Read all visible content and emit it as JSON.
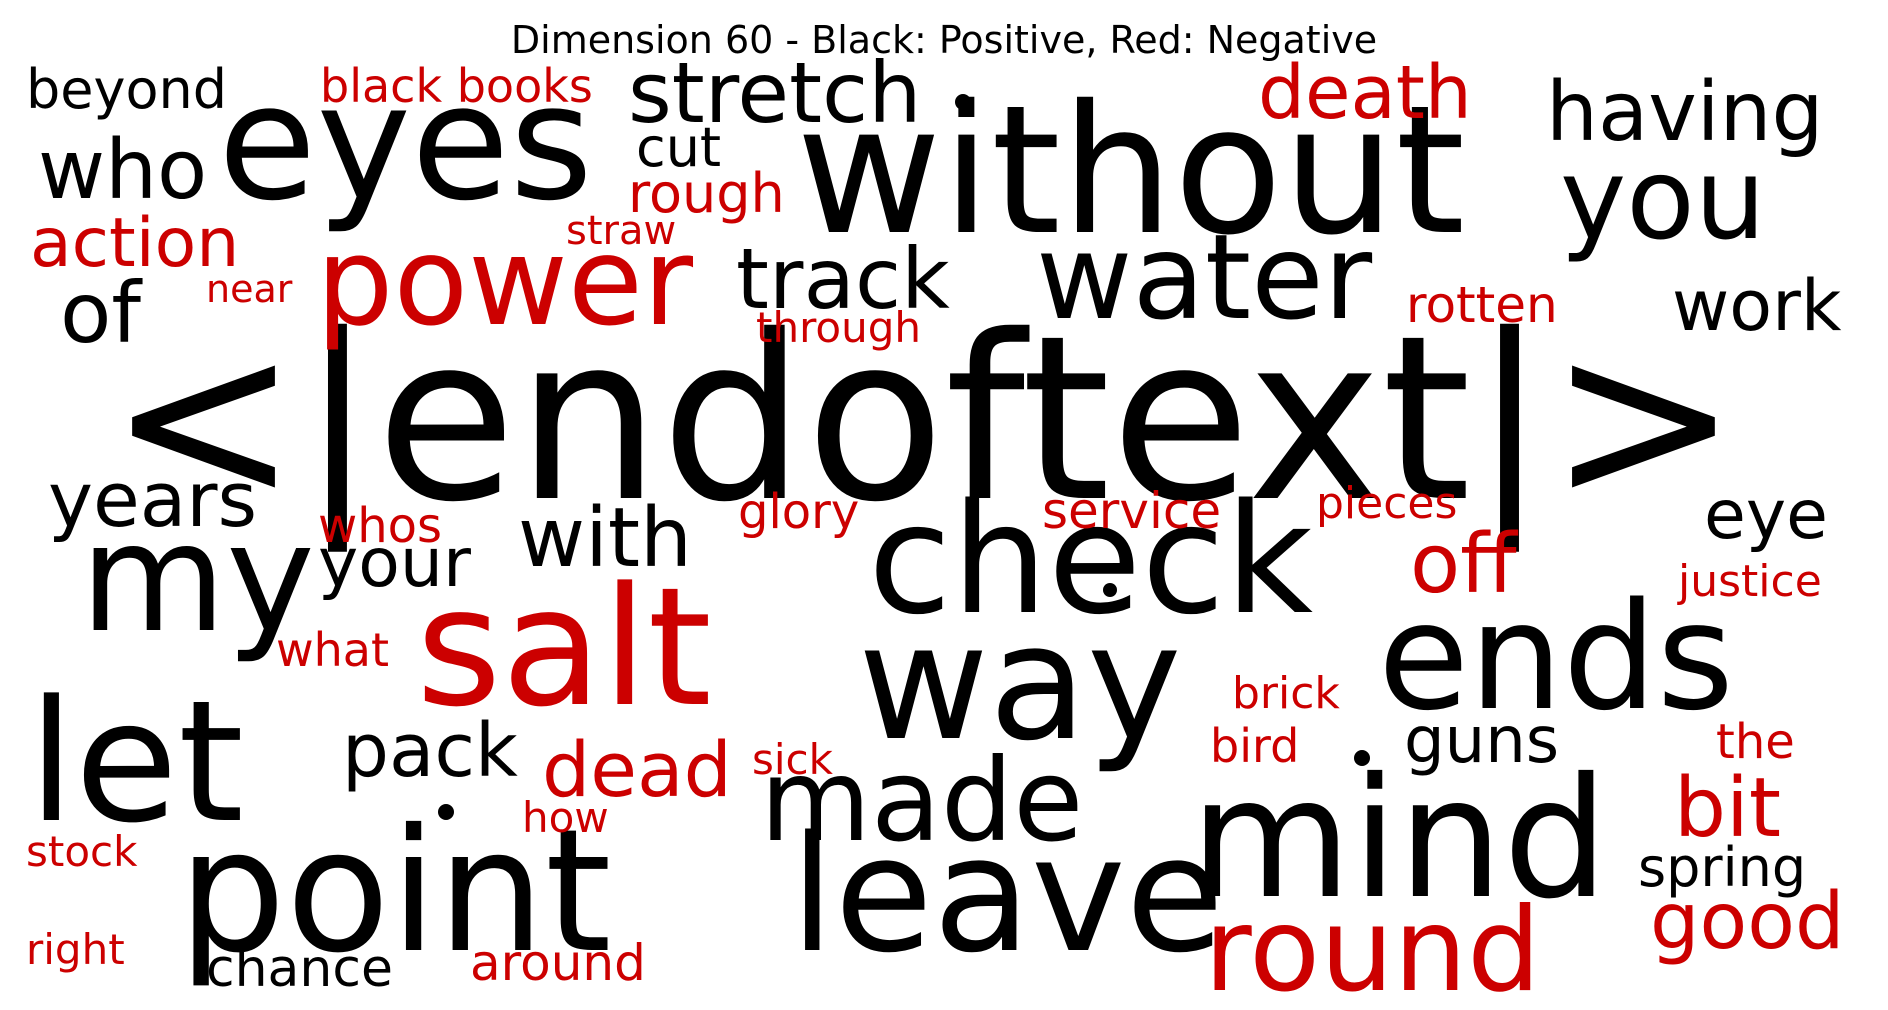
{
  "title": "Dimension 60 - Black: Positive, Red: Negative",
  "colors": {
    "positive": "#000000",
    "negative": "#cc0000"
  },
  "words": [
    {
      "text": "<|endoftext|>",
      "sign": "positive"
    },
    {
      "text": "without",
      "sign": "positive"
    },
    {
      "text": "eyes",
      "sign": "positive"
    },
    {
      "text": "check",
      "sign": "positive"
    },
    {
      "text": "way",
      "sign": "positive"
    },
    {
      "text": "point",
      "sign": "positive"
    },
    {
      "text": "leave",
      "sign": "positive"
    },
    {
      "text": "mind",
      "sign": "positive"
    },
    {
      "text": "ends",
      "sign": "positive"
    },
    {
      "text": "let",
      "sign": "positive"
    },
    {
      "text": "my",
      "sign": "positive"
    },
    {
      "text": "water",
      "sign": "positive"
    },
    {
      "text": "you",
      "sign": "positive"
    },
    {
      "text": "made",
      "sign": "positive"
    },
    {
      "text": "having",
      "sign": "positive"
    },
    {
      "text": "stretch",
      "sign": "positive"
    },
    {
      "text": "track",
      "sign": "positive"
    },
    {
      "text": "who",
      "sign": "positive"
    },
    {
      "text": "of",
      "sign": "positive"
    },
    {
      "text": "years",
      "sign": "positive"
    },
    {
      "text": "with",
      "sign": "positive"
    },
    {
      "text": "your",
      "sign": "positive"
    },
    {
      "text": "pack",
      "sign": "positive"
    },
    {
      "text": "guns",
      "sign": "positive"
    },
    {
      "text": "work",
      "sign": "positive"
    },
    {
      "text": "eye",
      "sign": "positive"
    },
    {
      "text": "beyond",
      "sign": "positive"
    },
    {
      "text": "cut",
      "sign": "positive"
    },
    {
      "text": "spring",
      "sign": "positive"
    },
    {
      "text": "chance",
      "sign": "positive"
    },
    {
      "text": "salt",
      "sign": "negative"
    },
    {
      "text": "power",
      "sign": "negative"
    },
    {
      "text": "round",
      "sign": "negative"
    },
    {
      "text": "death",
      "sign": "negative"
    },
    {
      "text": "dead",
      "sign": "negative"
    },
    {
      "text": "off",
      "sign": "negative"
    },
    {
      "text": "good",
      "sign": "negative"
    },
    {
      "text": "bit",
      "sign": "negative"
    },
    {
      "text": "action",
      "sign": "negative"
    },
    {
      "text": "rough",
      "sign": "negative"
    },
    {
      "text": "black books",
      "sign": "negative"
    },
    {
      "text": "rotten",
      "sign": "negative"
    },
    {
      "text": "service",
      "sign": "negative"
    },
    {
      "text": "around",
      "sign": "negative"
    },
    {
      "text": "whos",
      "sign": "negative"
    },
    {
      "text": "glory",
      "sign": "negative"
    },
    {
      "text": "pieces",
      "sign": "negative"
    },
    {
      "text": "justice",
      "sign": "negative"
    },
    {
      "text": "what",
      "sign": "negative"
    },
    {
      "text": "brick",
      "sign": "negative"
    },
    {
      "text": "bird",
      "sign": "negative"
    },
    {
      "text": "the",
      "sign": "negative"
    },
    {
      "text": "sick",
      "sign": "negative"
    },
    {
      "text": "how",
      "sign": "negative"
    },
    {
      "text": "stock",
      "sign": "negative"
    },
    {
      "text": "right",
      "sign": "negative"
    },
    {
      "text": "straw",
      "sign": "negative"
    },
    {
      "text": "near",
      "sign": "negative"
    },
    {
      "text": "through",
      "sign": "negative"
    }
  ]
}
